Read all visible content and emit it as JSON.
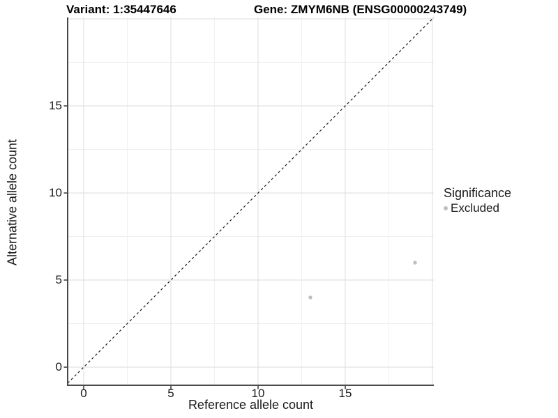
{
  "chart_data": {
    "type": "scatter",
    "title_left": "Variant: 1:35447646",
    "title_right": "Gene: ZMYM6NB (ENSG00000243749)",
    "xlabel": "Reference allele count",
    "ylabel": "Alternative allele count",
    "xlim": [
      -1,
      20.1
    ],
    "ylim": [
      -1,
      20.1
    ],
    "x_ticks": [
      0,
      5,
      10,
      15
    ],
    "y_ticks": [
      0,
      5,
      10,
      15
    ],
    "x_grid_major": [
      0,
      5,
      10,
      15,
      20
    ],
    "y_grid_major": [
      0,
      5,
      10,
      15,
      20
    ],
    "x_grid_minor": [
      2.5,
      7.5,
      12.5,
      17.5
    ],
    "y_grid_minor": [
      2.5,
      7.5,
      12.5,
      17.5
    ],
    "grid": true,
    "identity_line": {
      "style": "dashed",
      "color": "#1a1a1a",
      "from": [
        -1,
        -1
      ],
      "to": [
        20.1,
        20.1
      ]
    },
    "series": [
      {
        "name": "Excluded",
        "color": "#bebebe",
        "points": [
          {
            "x": 13,
            "y": 4
          },
          {
            "x": 19,
            "y": 6
          }
        ]
      }
    ],
    "legend": {
      "title": "Significance",
      "position": "right",
      "entries": [
        {
          "label": "Excluded",
          "color": "#bebebe"
        }
      ]
    },
    "colors": {
      "axis_line": "#333333",
      "grid_major": "#e2e2e2",
      "grid_minor": "#f0f0f0",
      "tick_text": "#1a1a1a"
    }
  }
}
